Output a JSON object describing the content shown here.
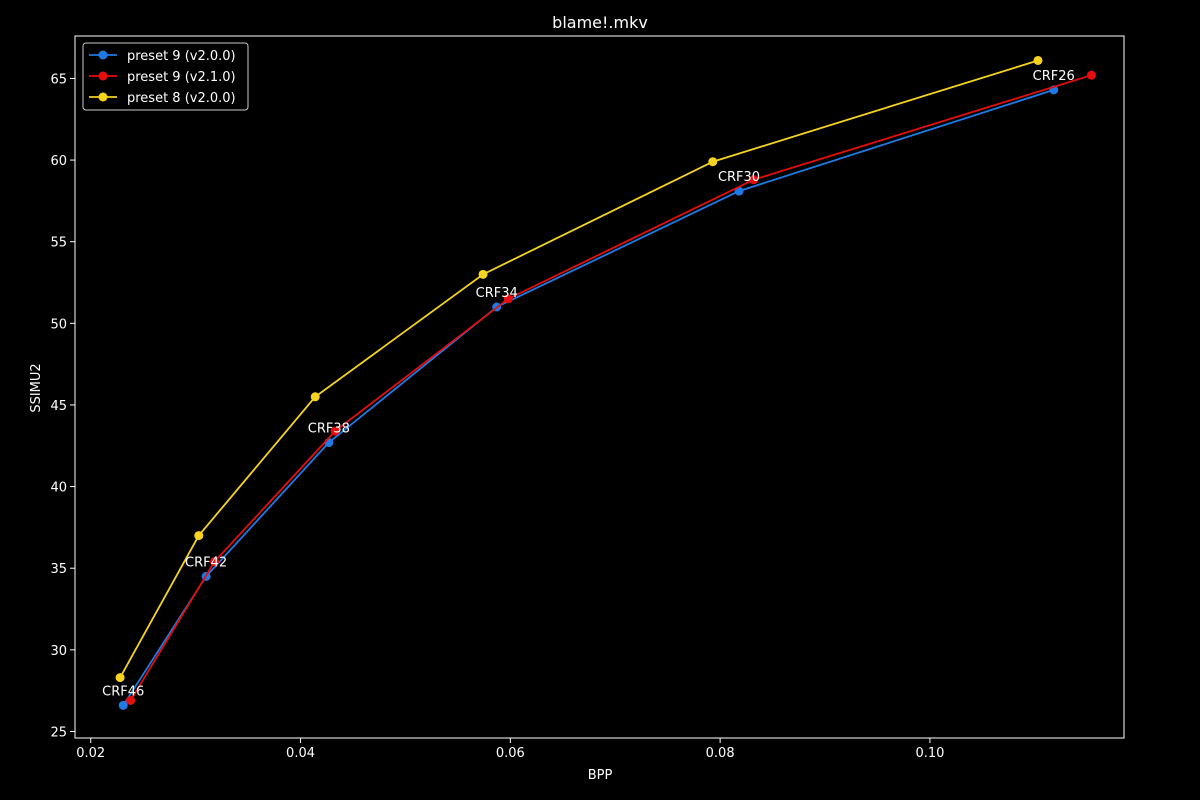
{
  "chart_data": {
    "type": "line",
    "title": "blame!.mkv",
    "xlabel": "BPP",
    "ylabel": "SSIMU2",
    "xlim": [
      0.0185,
      0.1185
    ],
    "ylim": [
      24.6,
      67.6
    ],
    "xticks": [
      0.02,
      0.04,
      0.06,
      0.08,
      0.1
    ],
    "xtick_labels": [
      "0.02",
      "0.04",
      "0.06",
      "0.08",
      "0.10"
    ],
    "yticks": [
      25,
      30,
      35,
      40,
      45,
      50,
      55,
      60,
      65
    ],
    "ytick_labels": [
      "25",
      "30",
      "35",
      "40",
      "45",
      "50",
      "55",
      "60",
      "65"
    ],
    "grid": false,
    "legend_position": "top-left",
    "series": [
      {
        "name": "preset 9 (v2.0.0)",
        "color": "#1f7ae6",
        "x": [
          0.0231,
          0.031,
          0.0427,
          0.0587,
          0.0818,
          0.1118
        ],
        "y": [
          26.6,
          34.5,
          42.7,
          51.0,
          58.1,
          64.3
        ]
      },
      {
        "name": "preset 9 (v2.1.0)",
        "color": "#e60d0d",
        "x": [
          0.0238,
          0.0318,
          0.0433,
          0.0598,
          0.0832,
          0.1154
        ],
        "y": [
          26.9,
          35.4,
          43.4,
          51.5,
          58.8,
          65.2
        ]
      },
      {
        "name": "preset 8 (v2.0.0)",
        "color": "#f5d31f",
        "x": [
          0.0228,
          0.0303,
          0.0414,
          0.0574,
          0.0793,
          0.1103
        ],
        "y": [
          28.3,
          37.0,
          45.5,
          53.0,
          59.9,
          66.1
        ]
      }
    ],
    "annotations": [
      {
        "text": "CRF46",
        "x": 0.0231,
        "y": 26.6
      },
      {
        "text": "CRF42",
        "x": 0.031,
        "y": 34.5
      },
      {
        "text": "CRF38",
        "x": 0.0427,
        "y": 42.7
      },
      {
        "text": "CRF34",
        "x": 0.0587,
        "y": 51.0
      },
      {
        "text": "CRF30",
        "x": 0.0818,
        "y": 58.1
      },
      {
        "text": "CRF26",
        "x": 0.1118,
        "y": 64.3
      }
    ]
  }
}
